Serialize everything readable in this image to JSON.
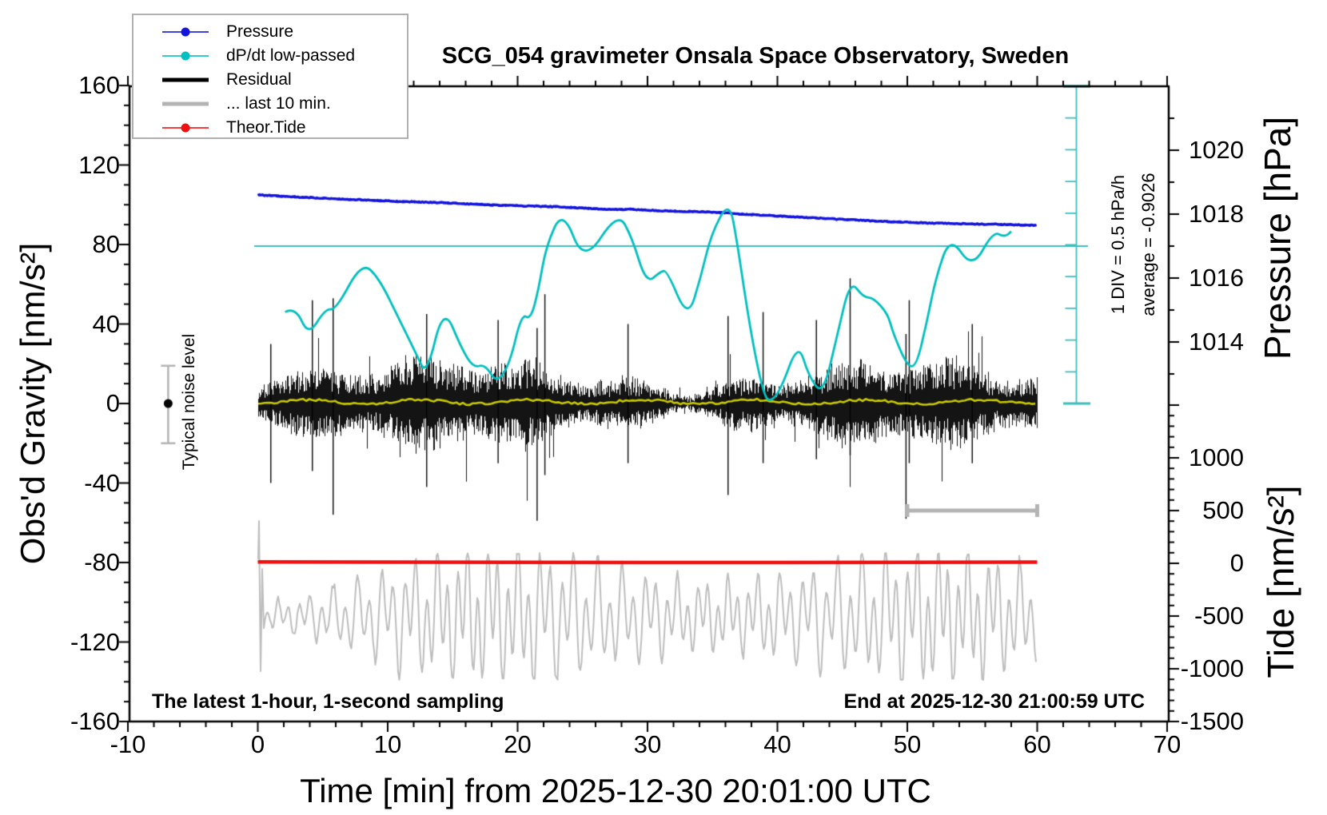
{
  "title": "SCG_054 gravimeter Onsala Space Observatory, Sweden",
  "footer_left": "The latest 1-hour, 1-second sampling",
  "footer_right": "End at 2025-12-30 21:00:59 UTC",
  "annotations": {
    "noise_level": "Typical noise level",
    "div_scale": "1 DIV = 0.5 hPa/h",
    "average": "average = -0.9026"
  },
  "legend": {
    "items": [
      {
        "label": "Pressure",
        "color": "#1414dd",
        "thick": false,
        "dot": true
      },
      {
        "label": "dP/dt low-passed",
        "color": "#00bfbf",
        "thick": false,
        "dot": true
      },
      {
        "label": "Residual",
        "color": "#000000",
        "thick": true,
        "dot": false
      },
      {
        "label": "... last 10 min.",
        "color": "#b4b4b4",
        "thick": true,
        "dot": false
      },
      {
        "label": "Theor.Tide",
        "color": "#ee1111",
        "thick": false,
        "dot": true
      }
    ]
  },
  "chart_data": {
    "type": "line",
    "title": "SCG_054 gravimeter Onsala Space Observatory, Sweden",
    "xlabel": "Time [min] from 2025-12-30 20:01:00 UTC",
    "grid": false,
    "legend_position": "top-left",
    "axes": {
      "x": {
        "label": "Time [min] from 2025-12-30 20:01:00 UTC",
        "min": -10,
        "max": 70,
        "major": 10,
        "minor": 2,
        "tick_labels": [
          -10,
          0,
          10,
          20,
          30,
          40,
          50,
          60,
          70
        ]
      },
      "gravity": {
        "label": "Obs'd Gravity [nm/s²]",
        "min": -160,
        "max": 160,
        "major": 40,
        "minor": 10,
        "tick_labels": [
          160,
          120,
          80,
          40,
          0,
          -40,
          -80,
          -120,
          -160
        ]
      },
      "pressure": {
        "label": "Pressure [hPa]",
        "unit": "hPa",
        "tick_labels": [
          1020,
          1018,
          1016,
          1014
        ],
        "minor_step": 1
      },
      "tide": {
        "label": "Tide [nm/s²]",
        "unit": "nm/s2",
        "tick_labels": [
          1000,
          500,
          0,
          -500,
          -1000,
          -1500
        ],
        "minor_step": 100
      },
      "dpdt_ruler": {
        "divisions": 10,
        "div_value_hpa_per_h": 0.5,
        "zero_at_gravity": 79.2,
        "top_gravity": 160,
        "bottom_gravity": 0,
        "average_hpa_per_h": -0.9026
      }
    },
    "series": {
      "pressure": {
        "name": "Pressure",
        "color": "#1414dd",
        "units": "hPa vs min",
        "points": [
          [
            0,
            1018.6
          ],
          [
            4.8,
            1018.5
          ],
          [
            10.9,
            1018.4
          ],
          [
            14.6,
            1018.35
          ],
          [
            18.3,
            1018.28
          ],
          [
            23.2,
            1018.23
          ],
          [
            26.9,
            1018.15
          ],
          [
            28.8,
            1018.15
          ],
          [
            31.2,
            1018.1
          ],
          [
            33.7,
            1018.08
          ],
          [
            35.5,
            1018.05
          ],
          [
            37.4,
            1018.0
          ],
          [
            40.5,
            1017.93
          ],
          [
            44.2,
            1017.85
          ],
          [
            47.8,
            1017.78
          ],
          [
            50.9,
            1017.73
          ],
          [
            54.0,
            1017.7
          ],
          [
            57.1,
            1017.68
          ],
          [
            60,
            1017.65
          ]
        ]
      },
      "dpdt": {
        "name": "dP/dt low-passed",
        "color": "#00bfbf",
        "units": "hPa/h vs min",
        "points": [
          [
            2.1,
            -1.03
          ],
          [
            2.9,
            -0.95
          ],
          [
            3.9,
            -1.41
          ],
          [
            5.2,
            -0.98
          ],
          [
            6.0,
            -1.0
          ],
          [
            8.0,
            -0.25
          ],
          [
            9.3,
            -0.49
          ],
          [
            10.9,
            -1.15
          ],
          [
            12.2,
            -1.69
          ],
          [
            13.0,
            -2.03
          ],
          [
            14.3,
            -0.93
          ],
          [
            15.7,
            -1.61
          ],
          [
            16.6,
            -1.9
          ],
          [
            17.5,
            -1.85
          ],
          [
            18.4,
            -2.15
          ],
          [
            19.4,
            -1.84
          ],
          [
            20.3,
            -1.06
          ],
          [
            21.0,
            -1.15
          ],
          [
            21.6,
            -0.69
          ],
          [
            22.2,
            0.01
          ],
          [
            23.5,
            0.58
          ],
          [
            25.1,
            -0.28
          ],
          [
            27.7,
            0.54
          ],
          [
            28.8,
            0.14
          ],
          [
            29.9,
            -0.59
          ],
          [
            31.0,
            -0.4
          ],
          [
            31.5,
            -0.38
          ],
          [
            33.1,
            -1.15
          ],
          [
            34.1,
            -0.49
          ],
          [
            34.9,
            0.19
          ],
          [
            36.3,
            0.72
          ],
          [
            36.9,
            0.06
          ],
          [
            37.6,
            -0.9
          ],
          [
            38.2,
            -1.61
          ],
          [
            38.8,
            -2.19
          ],
          [
            39.3,
            -2.46
          ],
          [
            40.2,
            -2.28
          ],
          [
            41.6,
            -1.5
          ],
          [
            42.4,
            -2.03
          ],
          [
            43.5,
            -2.34
          ],
          [
            44.6,
            -1.4
          ],
          [
            45.6,
            -0.53
          ],
          [
            46.6,
            -0.8
          ],
          [
            47.4,
            -0.81
          ],
          [
            48.5,
            -1.06
          ],
          [
            48.9,
            -1.36
          ],
          [
            50.0,
            -1.88
          ],
          [
            50.7,
            -1.88
          ],
          [
            51.5,
            -1.19
          ],
          [
            52.2,
            -0.49
          ],
          [
            53.3,
            0.16
          ],
          [
            55.0,
            -0.36
          ],
          [
            56.6,
            0.23
          ],
          [
            57.5,
            0.14
          ],
          [
            58.0,
            0.23
          ]
        ]
      },
      "residual": {
        "name": "Residual",
        "color": "#000000",
        "units": "nm/s2 vs min",
        "description": "1-second noise band centered at 0",
        "noise": {
          "seed": 7,
          "mean": 0,
          "typical_amplitude": 15,
          "t0": 0,
          "t1": 60
        },
        "spikes": [
          [
            1.0,
            -40,
            30
          ],
          [
            4.2,
            -34,
            52
          ],
          [
            5.8,
            -56,
            53
          ],
          [
            13.0,
            -42,
            45
          ],
          [
            18.5,
            -30,
            42
          ],
          [
            21.5,
            -59,
            38
          ],
          [
            22.1,
            -36,
            55
          ],
          [
            28.5,
            -30,
            40
          ],
          [
            36.2,
            -46,
            44
          ],
          [
            38.9,
            -30,
            46
          ],
          [
            43.0,
            -28,
            42
          ],
          [
            45.6,
            -26,
            63
          ],
          [
            49.9,
            -58,
            35
          ],
          [
            50.15,
            -30,
            52
          ],
          [
            55.0,
            -30,
            40
          ]
        ]
      },
      "residual_lowpass": {
        "name": "Residual low-passed",
        "color": "#c8c800",
        "mean_gravity": 0.8,
        "wiggle": 1.3,
        "t0": 0,
        "t1": 60
      },
      "last10": {
        "name": "... last 10 min.",
        "color": "#bdbdbd",
        "units": "tide nm/s2 vs min",
        "description": "last-10-min seismometer-like trace drawn on tide scale",
        "noise": {
          "seed": 13,
          "center_tide": -500,
          "typical_amplitude": 420,
          "period_min": 0.8,
          "t0": 0,
          "t1": 60
        },
        "marker_bar": {
          "t0": 50,
          "t1": 60,
          "tide": 500
        }
      },
      "tide": {
        "name": "Theor.Tide",
        "color": "#ee1111",
        "units": "tide nm/s2 vs min",
        "points": [
          [
            0,
            14
          ],
          [
            10,
            11
          ],
          [
            20,
            9
          ],
          [
            30,
            8
          ],
          [
            40,
            8
          ],
          [
            50,
            9
          ],
          [
            60,
            11
          ]
        ]
      }
    },
    "noise_marker": {
      "t": -6.9,
      "gravity": 0,
      "upper": 19,
      "lower": -20
    }
  }
}
